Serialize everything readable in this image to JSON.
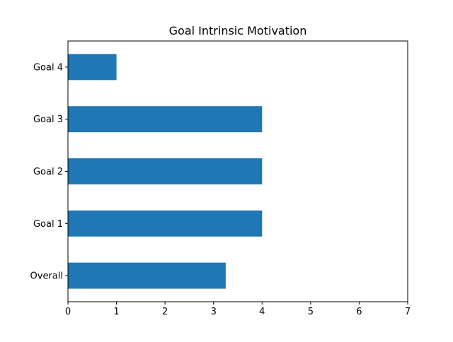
{
  "chart_data": {
    "type": "bar",
    "orientation": "horizontal",
    "title": "Goal Intrinsic Motivation",
    "xlabel": "",
    "ylabel": "",
    "categories": [
      "Overall",
      "Goal 1",
      "Goal 2",
      "Goal 3",
      "Goal 4"
    ],
    "values": [
      3.25,
      4,
      4,
      4,
      1
    ],
    "xlim": [
      0,
      7
    ],
    "xticks": [
      0,
      1,
      2,
      3,
      4,
      5,
      6,
      7
    ],
    "grid": false,
    "legend": "none",
    "bar_color": "#1f77b4"
  }
}
